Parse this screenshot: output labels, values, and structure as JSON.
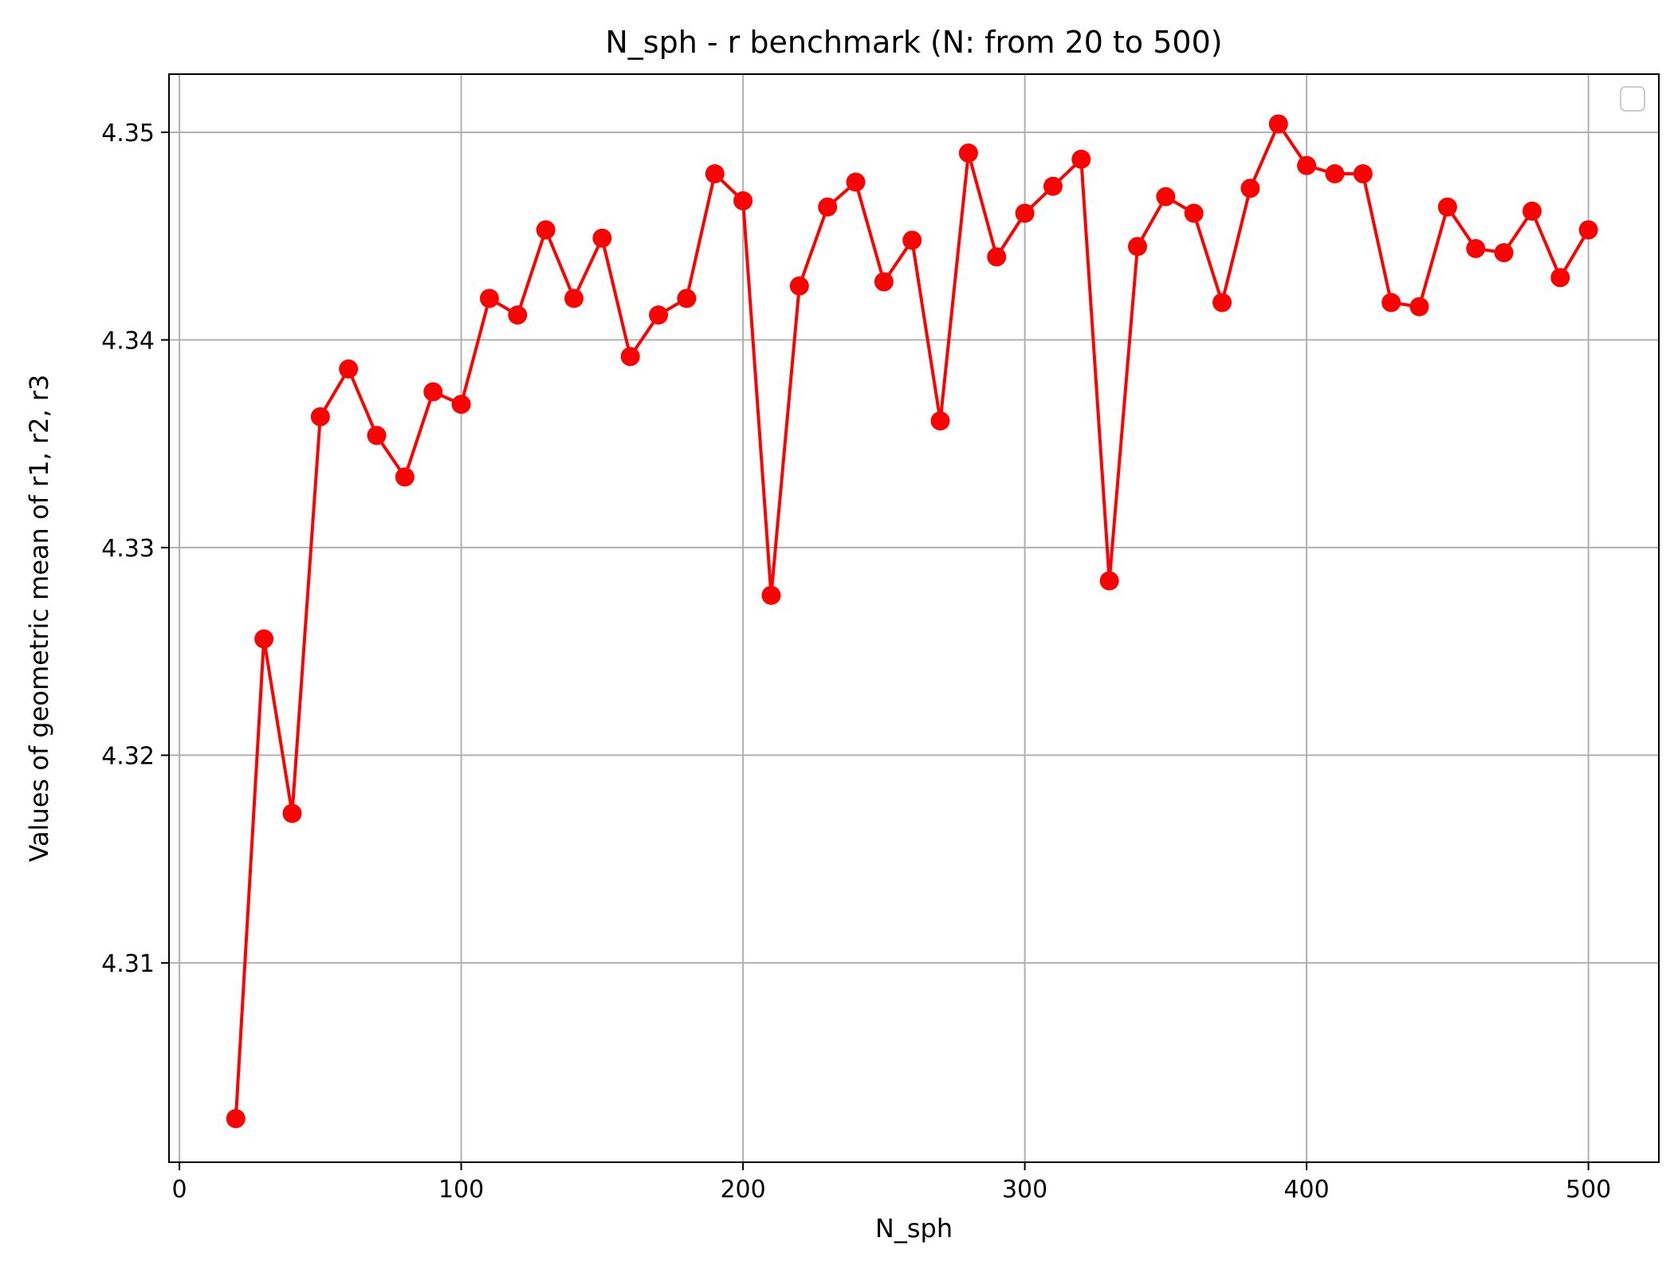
{
  "chart_data": {
    "type": "line",
    "title": "N_sph - r benchmark (N: from 20 to 500)",
    "xlabel": "N_sph",
    "ylabel": "Values of geometric mean of r1, r2, r3",
    "xlim": [
      -3.7,
      525
    ],
    "ylim": [
      4.3004,
      4.3528
    ],
    "x_ticks": [
      0,
      100,
      200,
      300,
      400,
      500
    ],
    "x_tick_labels": [
      "0",
      "100",
      "200",
      "300",
      "400",
      "500"
    ],
    "y_ticks": [
      4.31,
      4.32,
      4.33,
      4.34,
      4.35
    ],
    "y_tick_labels": [
      "4.31",
      "4.32",
      "4.33",
      "4.34",
      "4.35"
    ],
    "grid": true,
    "legend": "top-right",
    "series": [
      {
        "color": "#ff0000",
        "marker": "circle",
        "x": [
          20,
          30,
          40,
          50,
          60,
          70,
          80,
          90,
          100,
          110,
          120,
          130,
          140,
          150,
          160,
          170,
          180,
          190,
          200,
          210,
          220,
          230,
          240,
          250,
          260,
          270,
          280,
          290,
          300,
          310,
          320,
          330,
          340,
          350,
          360,
          370,
          380,
          390,
          400,
          410,
          420,
          430,
          440,
          450,
          460,
          470,
          480,
          490,
          500
        ],
        "y": [
          4.3025,
          4.3256,
          4.3172,
          4.3363,
          4.3386,
          4.3354,
          4.3334,
          4.3375,
          4.3369,
          4.342,
          4.3412,
          4.3453,
          4.342,
          4.3449,
          4.3392,
          4.3412,
          4.342,
          4.348,
          4.3467,
          4.3277,
          4.3426,
          4.3464,
          4.3476,
          4.3428,
          4.3448,
          4.3361,
          4.349,
          4.344,
          4.3461,
          4.3474,
          4.3487,
          4.3284,
          4.3445,
          4.3469,
          4.3461,
          4.3418,
          4.3473,
          4.3504,
          4.3484,
          4.348,
          4.348,
          4.3418,
          4.3416,
          4.3464,
          4.3444,
          4.3442,
          4.3462,
          4.343,
          4.3453
        ]
      }
    ]
  }
}
